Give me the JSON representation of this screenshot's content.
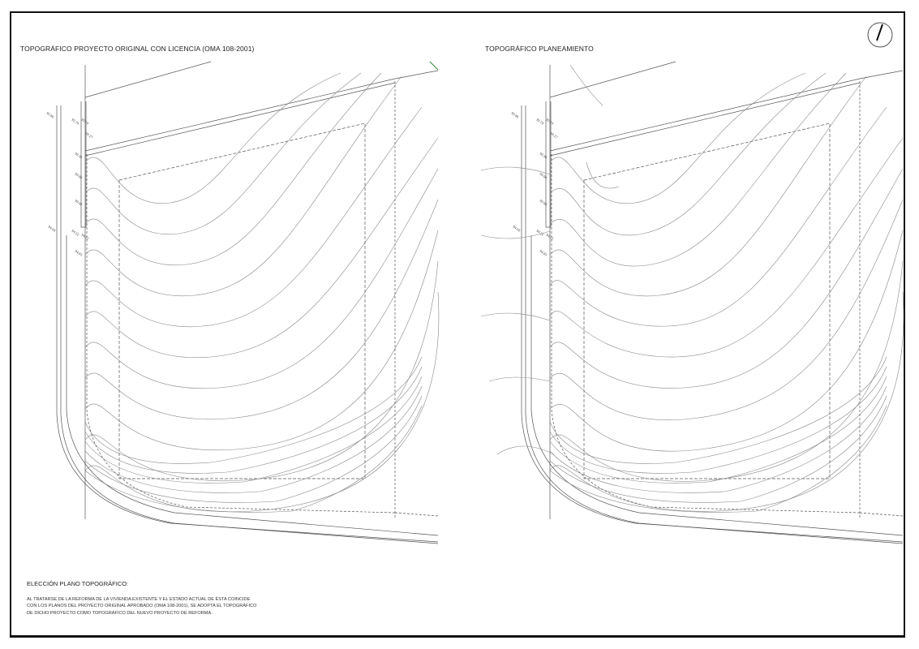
{
  "plans": [
    {
      "title": "TOPOGRÁFICO PROYECTO ORIGINAL CON LICENCIA (OMA 108-2001)"
    },
    {
      "title": "TOPOGRÁFICO PLANEAMIENTO"
    }
  ],
  "north_arrow": {
    "icon": "north-arrow-icon"
  },
  "note": {
    "heading": "ELECCIÓN PLANO TOPOGRÁFICO:",
    "lines": [
      "AL TRATARSE DE LA REFORMA DE LA VIVIENDA EXISTENTE Y EL ESTADO ACTUAL DE ÉSTA COINCIDE",
      "CON LOS PLANOS DEL PROYECTO ORIGINAL APROBADO (OMA 108-2001), SE ADOPTA EL TOPOGRÁFICO",
      "DE DICHO PROYECTO COMO TOPOGRÁFICO DEL NUEVO PROYECTO DE REFORMA."
    ]
  },
  "elevation_labels_left": [
    "92.86",
    "92.79",
    "92.74",
    "93.27",
    "93.38",
    "93.90",
    "93.98",
    "94.09",
    "94.22",
    "94.22",
    "94.83"
  ],
  "colors": {
    "line": "#555555",
    "frame": "#111111",
    "accent": "#2e8b3a"
  }
}
